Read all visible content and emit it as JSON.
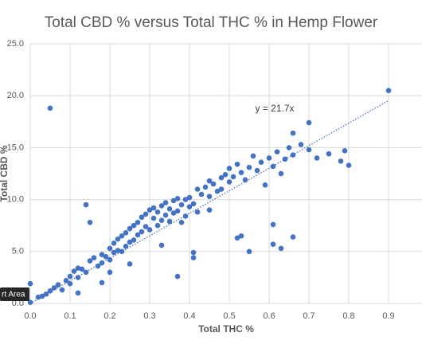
{
  "chart_data": {
    "type": "scatter",
    "title": "Total CBD % versus Total THC % in Hemp Flower",
    "x_label": "Total THC %",
    "y_label": "Total CBD %",
    "color": "#4472c4",
    "grid": true,
    "xlim": [
      0,
      0.9
    ],
    "ylim": [
      0,
      25
    ],
    "xticks": [
      {
        "value": 0,
        "label": "0.0"
      },
      0.1,
      0.2,
      0.3,
      0.4,
      0.5,
      0.6,
      0.7,
      0.8,
      0.9
    ],
    "yticks": [
      {
        "value": 0,
        "label": "0.0"
      },
      {
        "value": 5,
        "label": "5.0"
      },
      {
        "value": 10,
        "label": "10.0"
      },
      {
        "value": 15,
        "label": "15.0"
      },
      {
        "value": 20,
        "label": "20.0"
      },
      {
        "value": 25,
        "label": "25.0"
      }
    ],
    "trendline": {
      "label": "y = 21.7x",
      "slope": 21.7
    },
    "tooltip": "rt Area",
    "x": [
      0,
      0,
      0.02,
      0.03,
      0.04,
      0.05,
      0.06,
      0.07,
      0.08,
      0.09,
      0.1,
      0.1,
      0.11,
      0.12,
      0.12,
      0.13,
      0.14,
      0.15,
      0.16,
      0.17,
      0.18,
      0.18,
      0.19,
      0.2,
      0.2,
      0.21,
      0.21,
      0.22,
      0.22,
      0.23,
      0.23,
      0.24,
      0.24,
      0.25,
      0.25,
      0.26,
      0.26,
      0.27,
      0.27,
      0.28,
      0.28,
      0.29,
      0.29,
      0.3,
      0.3,
      0.31,
      0.31,
      0.32,
      0.32,
      0.33,
      0.33,
      0.34,
      0.34,
      0.35,
      0.35,
      0.36,
      0.36,
      0.37,
      0.37,
      0.38,
      0.38,
      0.39,
      0.39,
      0.4,
      0.4,
      0.41,
      0.42,
      0.42,
      0.43,
      0.44,
      0.45,
      0.45,
      0.46,
      0.47,
      0.48,
      0.48,
      0.49,
      0.5,
      0.5,
      0.51,
      0.52,
      0.53,
      0.54,
      0.55,
      0.56,
      0.57,
      0.58,
      0.59,
      0.6,
      0.61,
      0.62,
      0.63,
      0.64,
      0.65,
      0.66,
      0.68,
      0.7,
      0.72,
      0.75,
      0.78,
      0.8,
      0.05,
      0.9,
      0.14,
      0.15,
      0.37,
      0.41,
      0.41,
      0.55,
      0.52,
      0.53,
      0.61,
      0.61,
      0.63,
      0.66,
      0.2,
      0.25,
      0.33,
      0.45,
      0.18,
      0.12,
      0.7,
      0.66,
      0.79
    ],
    "values": [
      1.9,
      0.1,
      0.6,
      0.7,
      0.9,
      1.2,
      1.5,
      1.8,
      1.3,
      2.2,
      2.6,
      1.9,
      3.1,
      2.5,
      3.4,
      3.3,
      3.0,
      4.1,
      4.4,
      3.6,
      4.7,
      3.9,
      4.5,
      5.3,
      4.2,
      5.8,
      4.9,
      5.1,
      6.2,
      5.0,
      6.5,
      5.5,
      6.8,
      7.2,
      5.9,
      7.5,
      6.1,
      7.8,
      6.6,
      8.3,
      6.9,
      7.4,
      8.6,
      9.0,
      7.1,
      8.2,
      9.2,
      8.8,
      7.5,
      9.4,
      8.0,
      9.7,
      8.5,
      9.1,
      7.9,
      9.9,
      8.7,
      10.1,
      8.9,
      9.5,
      7.8,
      10.0,
      8.4,
      10.2,
      9.3,
      9.6,
      11.0,
      8.8,
      10.5,
      11.2,
      10.3,
      11.8,
      11.5,
      10.8,
      12.1,
      11.0,
      12.4,
      11.7,
      13.0,
      12.2,
      13.4,
      12.6,
      11.9,
      13.1,
      14.2,
      12.8,
      13.6,
      11.4,
      14.0,
      13.2,
      14.6,
      12.5,
      13.9,
      15.0,
      14.3,
      15.3,
      14.8,
      14.0,
      14.4,
      13.7,
      13.3,
      18.8,
      20.5,
      9.5,
      7.8,
      2.6,
      4.9,
      4.4,
      5.0,
      6.3,
      6.5,
      5.7,
      7.6,
      5.3,
      6.4,
      3.0,
      3.8,
      5.6,
      9.0,
      2.0,
      1.0,
      17.4,
      16.4,
      14.7
    ]
  }
}
